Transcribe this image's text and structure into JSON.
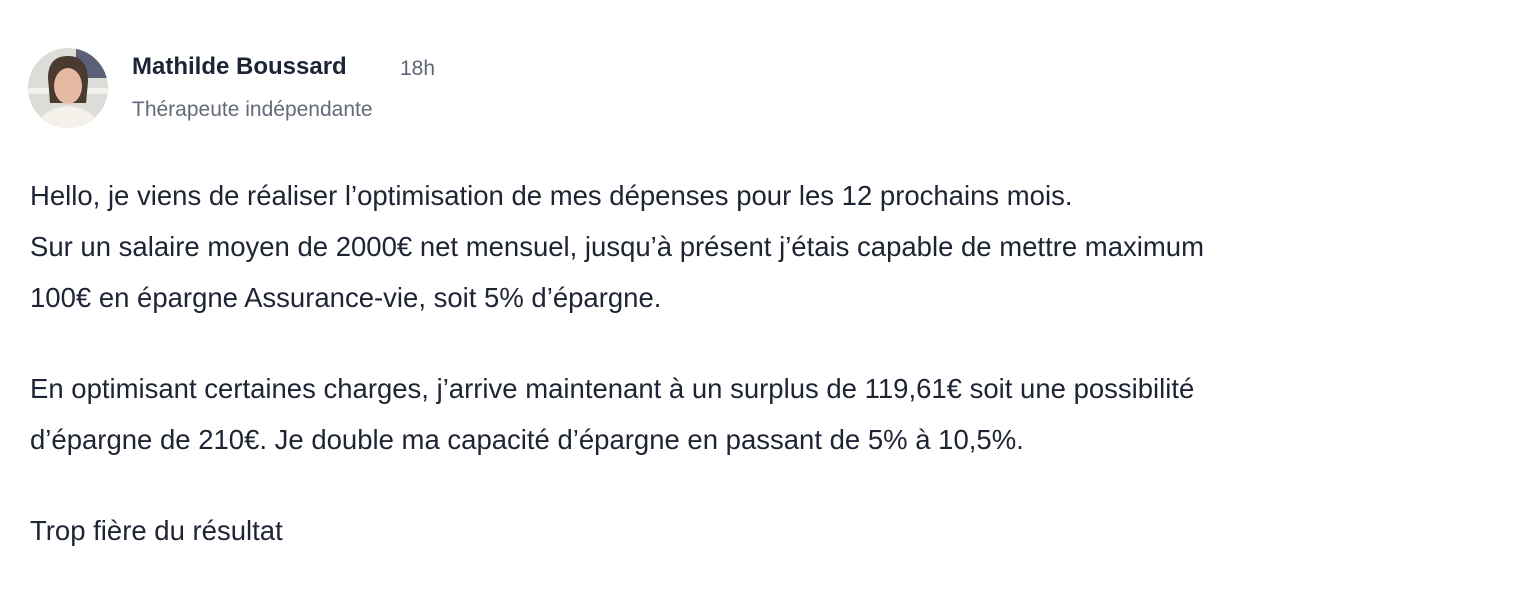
{
  "post": {
    "author": {
      "name": "Mathilde Boussard",
      "time": "18h",
      "subtitle": "Thérapeute indépendante",
      "avatar_icon": "user-photo-avatar"
    },
    "paragraphs": [
      [
        "Hello, je viens de réaliser l’optimisation de mes dépenses pour les 12 prochains mois.",
        "Sur un salaire moyen de 2000€ net mensuel, jusqu’à présent j’étais capable de mettre maximum",
        "100€ en épargne Assurance-vie, soit 5% d’épargne."
      ],
      [
        "En optimisant certaines charges, j’arrive maintenant à un surplus de 119,61€ soit une possibilité",
        "d’épargne de 210€. Je double ma capacité d’épargne en passant de 5% à 10,5%."
      ],
      [
        "Trop fière du résultat"
      ]
    ]
  }
}
